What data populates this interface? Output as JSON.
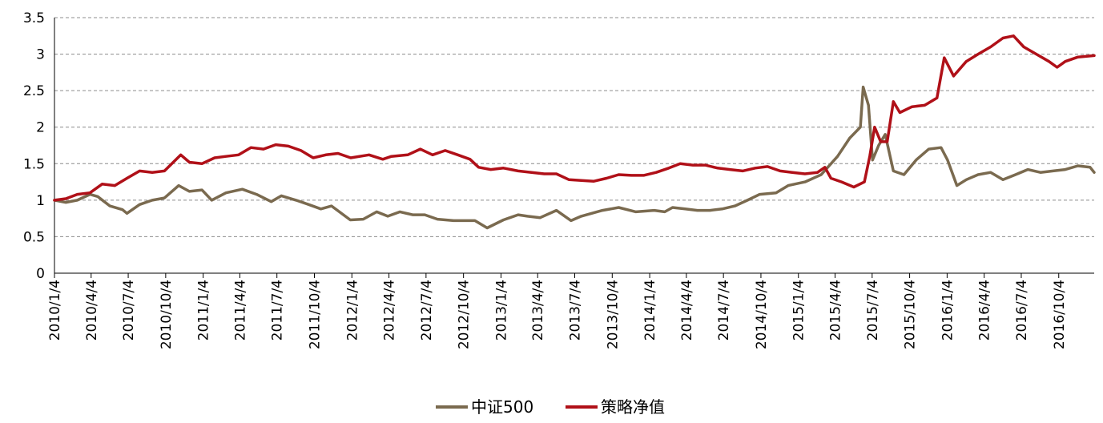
{
  "chart_data": {
    "type": "line",
    "title": "",
    "xlabel": "",
    "ylabel": "",
    "ylim": [
      0,
      3.5
    ],
    "yticks": [
      "0",
      "0.5",
      "1",
      "1.5",
      "2",
      "2.5",
      "3",
      "3.5"
    ],
    "grid": "horizontal dashed",
    "legend_position": "bottom",
    "x_start": "2010-01-04",
    "x_end": "2016-12-30",
    "x_tick_labels": [
      "2010/1/4",
      "2010/4/4",
      "2010/7/4",
      "2010/10/4",
      "2011/1/4",
      "2011/4/4",
      "2011/7/4",
      "2011/10/4",
      "2012/1/4",
      "2012/4/4",
      "2012/7/4",
      "2012/10/4",
      "2013/1/4",
      "2013/4/4",
      "2013/7/4",
      "2013/10/4",
      "2014/1/4",
      "2014/4/4",
      "2014/7/4",
      "2014/10/4",
      "2015/1/4",
      "2015/4/4",
      "2015/7/4",
      "2015/10/4",
      "2016/1/4",
      "2016/4/4",
      "2016/7/4",
      "2016/10/4"
    ],
    "series": [
      {
        "name": "中证500",
        "color": "#7a6a4f",
        "points": [
          [
            "2010-01-04",
            1.0
          ],
          [
            "2010-02-01",
            0.97
          ],
          [
            "2010-03-01",
            1.0
          ],
          [
            "2010-04-01",
            1.08
          ],
          [
            "2010-04-20",
            1.05
          ],
          [
            "2010-05-20",
            0.92
          ],
          [
            "2010-06-20",
            0.87
          ],
          [
            "2010-07-01",
            0.82
          ],
          [
            "2010-08-01",
            0.94
          ],
          [
            "2010-09-01",
            1.0
          ],
          [
            "2010-10-01",
            1.03
          ],
          [
            "2010-11-05",
            1.2
          ],
          [
            "2010-12-01",
            1.12
          ],
          [
            "2011-01-01",
            1.14
          ],
          [
            "2011-01-25",
            1.0
          ],
          [
            "2011-03-01",
            1.1
          ],
          [
            "2011-04-10",
            1.15
          ],
          [
            "2011-05-15",
            1.08
          ],
          [
            "2011-06-20",
            0.98
          ],
          [
            "2011-07-15",
            1.06
          ],
          [
            "2011-08-20",
            1.0
          ],
          [
            "2011-09-20",
            0.94
          ],
          [
            "2011-10-20",
            0.88
          ],
          [
            "2011-11-15",
            0.92
          ],
          [
            "2011-12-31",
            0.73
          ],
          [
            "2012-02-01",
            0.74
          ],
          [
            "2012-03-05",
            0.84
          ],
          [
            "2012-04-01",
            0.78
          ],
          [
            "2012-05-01",
            0.84
          ],
          [
            "2012-06-01",
            0.8
          ],
          [
            "2012-07-01",
            0.8
          ],
          [
            "2012-08-01",
            0.74
          ],
          [
            "2012-09-10",
            0.72
          ],
          [
            "2012-10-01",
            0.72
          ],
          [
            "2012-11-01",
            0.72
          ],
          [
            "2012-12-01",
            0.62
          ],
          [
            "2013-01-10",
            0.73
          ],
          [
            "2013-02-15",
            0.8
          ],
          [
            "2013-03-10",
            0.78
          ],
          [
            "2013-04-10",
            0.76
          ],
          [
            "2013-05-20",
            0.86
          ],
          [
            "2013-06-25",
            0.72
          ],
          [
            "2013-07-20",
            0.78
          ],
          [
            "2013-09-10",
            0.86
          ],
          [
            "2013-10-20",
            0.9
          ],
          [
            "2013-12-01",
            0.84
          ],
          [
            "2014-01-15",
            0.86
          ],
          [
            "2014-02-10",
            0.84
          ],
          [
            "2014-03-01",
            0.9
          ],
          [
            "2014-04-01",
            0.88
          ],
          [
            "2014-05-01",
            0.86
          ],
          [
            "2014-06-01",
            0.86
          ],
          [
            "2014-07-01",
            0.88
          ],
          [
            "2014-08-01",
            0.92
          ],
          [
            "2014-09-01",
            1.0
          ],
          [
            "2014-10-01",
            1.08
          ],
          [
            "2014-11-10",
            1.1
          ],
          [
            "2014-12-10",
            1.2
          ],
          [
            "2015-01-20",
            1.25
          ],
          [
            "2015-03-01",
            1.35
          ],
          [
            "2015-04-10",
            1.6
          ],
          [
            "2015-05-10",
            1.85
          ],
          [
            "2015-06-05",
            2.0
          ],
          [
            "2015-06-12",
            2.55
          ],
          [
            "2015-06-25",
            2.3
          ],
          [
            "2015-07-05",
            1.55
          ],
          [
            "2015-07-20",
            1.75
          ],
          [
            "2015-08-05",
            1.9
          ],
          [
            "2015-08-25",
            1.4
          ],
          [
            "2015-09-20",
            1.35
          ],
          [
            "2015-10-20",
            1.55
          ],
          [
            "2015-11-20",
            1.7
          ],
          [
            "2015-12-20",
            1.72
          ],
          [
            "2016-01-05",
            1.55
          ],
          [
            "2016-01-28",
            1.2
          ],
          [
            "2016-02-20",
            1.28
          ],
          [
            "2016-03-20",
            1.35
          ],
          [
            "2016-04-20",
            1.38
          ],
          [
            "2016-05-20",
            1.28
          ],
          [
            "2016-06-20",
            1.35
          ],
          [
            "2016-07-20",
            1.42
          ],
          [
            "2016-08-20",
            1.38
          ],
          [
            "2016-09-20",
            1.4
          ],
          [
            "2016-10-20",
            1.42
          ],
          [
            "2016-11-20",
            1.47
          ],
          [
            "2016-12-20",
            1.45
          ],
          [
            "2016-12-30",
            1.38
          ]
        ]
      },
      {
        "name": "策略净值",
        "color": "#b01018",
        "points": [
          [
            "2010-01-04",
            1.0
          ],
          [
            "2010-02-01",
            1.02
          ],
          [
            "2010-03-01",
            1.08
          ],
          [
            "2010-04-01",
            1.1
          ],
          [
            "2010-05-01",
            1.22
          ],
          [
            "2010-06-01",
            1.2
          ],
          [
            "2010-07-01",
            1.3
          ],
          [
            "2010-08-01",
            1.4
          ],
          [
            "2010-09-01",
            1.38
          ],
          [
            "2010-10-01",
            1.4
          ],
          [
            "2010-11-10",
            1.62
          ],
          [
            "2010-12-01",
            1.52
          ],
          [
            "2011-01-01",
            1.5
          ],
          [
            "2011-02-01",
            1.58
          ],
          [
            "2011-03-01",
            1.6
          ],
          [
            "2011-04-01",
            1.62
          ],
          [
            "2011-05-01",
            1.72
          ],
          [
            "2011-06-01",
            1.7
          ],
          [
            "2011-07-01",
            1.76
          ],
          [
            "2011-08-01",
            1.74
          ],
          [
            "2011-09-01",
            1.68
          ],
          [
            "2011-10-01",
            1.58
          ],
          [
            "2011-11-01",
            1.62
          ],
          [
            "2011-12-01",
            1.64
          ],
          [
            "2012-01-01",
            1.58
          ],
          [
            "2012-02-15",
            1.62
          ],
          [
            "2012-03-20",
            1.56
          ],
          [
            "2012-04-10",
            1.6
          ],
          [
            "2012-05-20",
            1.62
          ],
          [
            "2012-06-20",
            1.7
          ],
          [
            "2012-07-20",
            1.62
          ],
          [
            "2012-08-20",
            1.68
          ],
          [
            "2012-09-20",
            1.62
          ],
          [
            "2012-10-20",
            1.56
          ],
          [
            "2012-11-10",
            1.45
          ],
          [
            "2012-12-10",
            1.42
          ],
          [
            "2013-01-10",
            1.44
          ],
          [
            "2013-02-15",
            1.4
          ],
          [
            "2013-03-20",
            1.38
          ],
          [
            "2013-04-20",
            1.36
          ],
          [
            "2013-05-20",
            1.36
          ],
          [
            "2013-06-20",
            1.28
          ],
          [
            "2013-07-20",
            1.27
          ],
          [
            "2013-08-20",
            1.26
          ],
          [
            "2013-09-20",
            1.3
          ],
          [
            "2013-10-20",
            1.35
          ],
          [
            "2013-11-20",
            1.34
          ],
          [
            "2013-12-20",
            1.34
          ],
          [
            "2014-01-20",
            1.38
          ],
          [
            "2014-02-20",
            1.44
          ],
          [
            "2014-03-20",
            1.5
          ],
          [
            "2014-04-20",
            1.48
          ],
          [
            "2014-05-20",
            1.48
          ],
          [
            "2014-06-20",
            1.44
          ],
          [
            "2014-07-20",
            1.42
          ],
          [
            "2014-08-20",
            1.4
          ],
          [
            "2014-09-20",
            1.44
          ],
          [
            "2014-10-20",
            1.46
          ],
          [
            "2014-11-20",
            1.4
          ],
          [
            "2014-12-20",
            1.38
          ],
          [
            "2015-01-20",
            1.36
          ],
          [
            "2015-02-20",
            1.38
          ],
          [
            "2015-03-10",
            1.45
          ],
          [
            "2015-03-25",
            1.3
          ],
          [
            "2015-04-20",
            1.25
          ],
          [
            "2015-05-20",
            1.18
          ],
          [
            "2015-06-15",
            1.25
          ],
          [
            "2015-06-28",
            1.6
          ],
          [
            "2015-07-10",
            2.0
          ],
          [
            "2015-07-25",
            1.8
          ],
          [
            "2015-08-10",
            1.8
          ],
          [
            "2015-08-25",
            2.35
          ],
          [
            "2015-09-10",
            2.2
          ],
          [
            "2015-10-10",
            2.28
          ],
          [
            "2015-11-10",
            2.3
          ],
          [
            "2015-12-10",
            2.4
          ],
          [
            "2015-12-28",
            2.95
          ],
          [
            "2016-01-20",
            2.7
          ],
          [
            "2016-02-20",
            2.9
          ],
          [
            "2016-03-20",
            3.0
          ],
          [
            "2016-04-20",
            3.1
          ],
          [
            "2016-05-20",
            3.22
          ],
          [
            "2016-06-15",
            3.25
          ],
          [
            "2016-07-10",
            3.1
          ],
          [
            "2016-08-10",
            3.0
          ],
          [
            "2016-09-10",
            2.9
          ],
          [
            "2016-09-30",
            2.82
          ],
          [
            "2016-10-20",
            2.9
          ],
          [
            "2016-11-20",
            2.96
          ],
          [
            "2016-12-30",
            2.98
          ]
        ]
      }
    ]
  }
}
